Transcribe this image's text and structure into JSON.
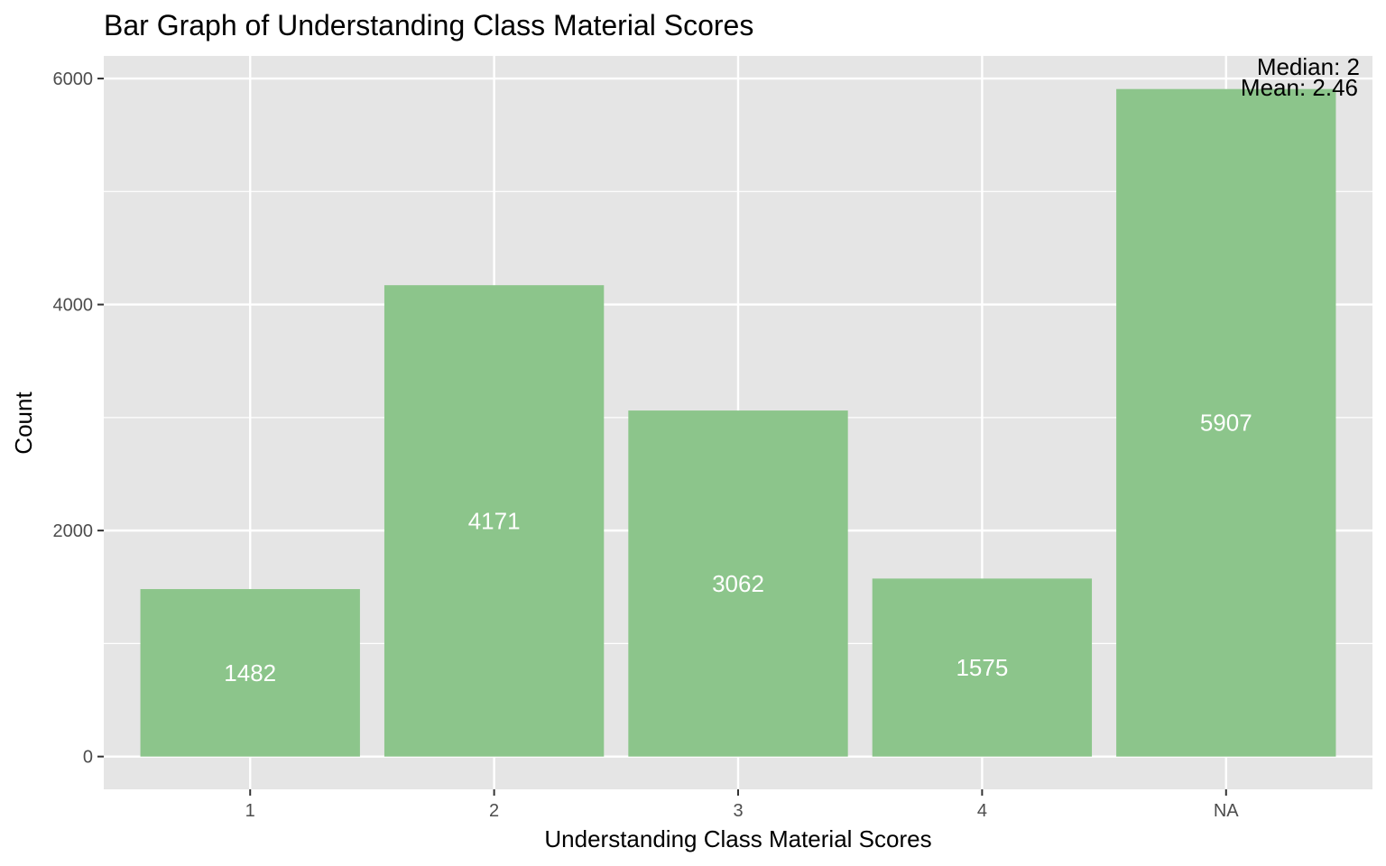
{
  "chart_data": {
    "type": "bar",
    "title": "Bar Graph of Understanding Class Material Scores",
    "xlabel": "Understanding Class Material Scores",
    "ylabel": "Count",
    "categories": [
      "1",
      "2",
      "3",
      "4",
      "NA"
    ],
    "values": [
      1482,
      4171,
      3062,
      1575,
      5907
    ],
    "value_labels": [
      "1482",
      "4171",
      "3062",
      "1575",
      "5907"
    ],
    "ylim": [
      -290,
      6200
    ],
    "y_ticks": [
      0,
      2000,
      4000,
      6000
    ],
    "y_minor_ticks": [
      1000,
      3000,
      5000
    ],
    "y_tick_labels": [
      "0",
      "2000",
      "4000",
      "6000"
    ],
    "grid": true,
    "annotations": {
      "median": "Median: 2",
      "mean": "Mean: 2.46"
    },
    "colors": {
      "bar": "#8cc58b",
      "panel_background": "#e5e5e5",
      "grid": "#ffffff",
      "bar_label": "#ffffff"
    }
  }
}
